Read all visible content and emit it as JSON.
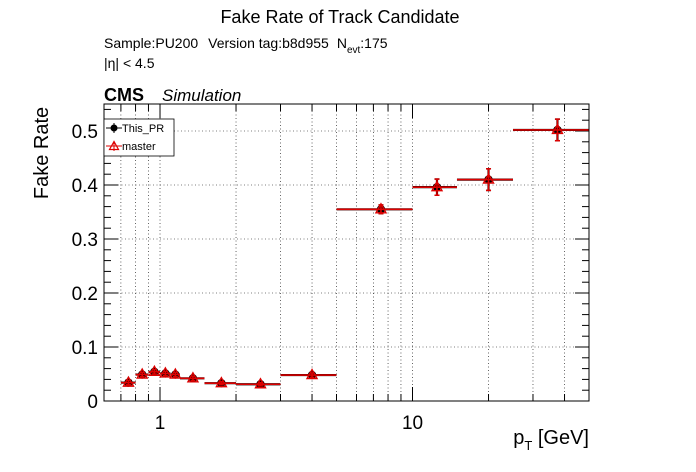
{
  "chart_data": {
    "type": "scatter",
    "title": "Fake Rate of Track Candidate",
    "info_line1": {
      "sample": "Sample:PU200",
      "version": "Version tag:b8d955",
      "nevt_prefix": "N",
      "nevt_sub": "evt",
      "nevt_value": ":175"
    },
    "info_line2": "|η| < 4.5",
    "cms_label": "CMS",
    "cms_sublabel": "Simulation",
    "ylabel": "Fake Rate",
    "xlabel_main": "p",
    "xlabel_sub": "T",
    "xlabel_unit": " [GeV]",
    "xscale": "log",
    "xlim": [
      0.6,
      50
    ],
    "ylim": [
      0,
      0.55
    ],
    "grid": true,
    "legend_placement": "top-left",
    "x_tick_labels": [
      {
        "value": 1,
        "label": "1"
      },
      {
        "value": 10,
        "label": "10"
      }
    ],
    "y_tick_labels": [
      {
        "value": 0,
        "label": "0"
      },
      {
        "value": 0.1,
        "label": "0.1"
      },
      {
        "value": 0.2,
        "label": "0.2"
      },
      {
        "value": 0.3,
        "label": "0.3"
      },
      {
        "value": 0.4,
        "label": "0.4"
      },
      {
        "value": 0.5,
        "label": "0.5"
      }
    ],
    "series": [
      {
        "name": "This_PR",
        "color": "#000000",
        "marker": "filled-circle",
        "points": [
          {
            "x": 0.75,
            "xlo": 0.7,
            "xhi": 0.8,
            "y": 0.034,
            "yerr": 0.004
          },
          {
            "x": 0.85,
            "xlo": 0.8,
            "xhi": 0.9,
            "y": 0.049,
            "yerr": 0.004
          },
          {
            "x": 0.95,
            "xlo": 0.9,
            "xhi": 1.0,
            "y": 0.054,
            "yerr": 0.004
          },
          {
            "x": 1.05,
            "xlo": 1.0,
            "xhi": 1.1,
            "y": 0.051,
            "yerr": 0.004
          },
          {
            "x": 1.15,
            "xlo": 1.1,
            "xhi": 1.2,
            "y": 0.049,
            "yerr": 0.004
          },
          {
            "x": 1.35,
            "xlo": 1.2,
            "xhi": 1.5,
            "y": 0.042,
            "yerr": 0.004
          },
          {
            "x": 1.75,
            "xlo": 1.5,
            "xhi": 2.0,
            "y": 0.033,
            "yerr": 0.003
          },
          {
            "x": 2.5,
            "xlo": 2.0,
            "xhi": 3.0,
            "y": 0.031,
            "yerr": 0.003
          },
          {
            "x": 4.0,
            "xlo": 3.0,
            "xhi": 5.0,
            "y": 0.048,
            "yerr": 0.004
          },
          {
            "x": 7.5,
            "xlo": 5.0,
            "xhi": 10.0,
            "y": 0.355,
            "yerr": 0.008
          },
          {
            "x": 12.5,
            "xlo": 10.0,
            "xhi": 15.0,
            "y": 0.396,
            "yerr": 0.015
          },
          {
            "x": 20.0,
            "xlo": 15.0,
            "xhi": 25.0,
            "y": 0.41,
            "yerr": 0.02
          },
          {
            "x": 37.5,
            "xlo": 25.0,
            "xhi": 50.0,
            "y": 0.502,
            "yerr": 0.02
          }
        ]
      },
      {
        "name": "master",
        "color": "#dd0000",
        "marker": "open-triangle",
        "points": [
          {
            "x": 0.75,
            "xlo": 0.7,
            "xhi": 0.8,
            "y": 0.034,
            "yerr": 0.004
          },
          {
            "x": 0.85,
            "xlo": 0.8,
            "xhi": 0.9,
            "y": 0.049,
            "yerr": 0.004
          },
          {
            "x": 0.95,
            "xlo": 0.9,
            "xhi": 1.0,
            "y": 0.054,
            "yerr": 0.004
          },
          {
            "x": 1.05,
            "xlo": 1.0,
            "xhi": 1.1,
            "y": 0.051,
            "yerr": 0.004
          },
          {
            "x": 1.15,
            "xlo": 1.1,
            "xhi": 1.2,
            "y": 0.049,
            "yerr": 0.004
          },
          {
            "x": 1.35,
            "xlo": 1.2,
            "xhi": 1.5,
            "y": 0.042,
            "yerr": 0.004
          },
          {
            "x": 1.75,
            "xlo": 1.5,
            "xhi": 2.0,
            "y": 0.033,
            "yerr": 0.003
          },
          {
            "x": 2.5,
            "xlo": 2.0,
            "xhi": 3.0,
            "y": 0.031,
            "yerr": 0.003
          },
          {
            "x": 4.0,
            "xlo": 3.0,
            "xhi": 5.0,
            "y": 0.048,
            "yerr": 0.004
          },
          {
            "x": 7.5,
            "xlo": 5.0,
            "xhi": 10.0,
            "y": 0.355,
            "yerr": 0.008
          },
          {
            "x": 12.5,
            "xlo": 10.0,
            "xhi": 15.0,
            "y": 0.396,
            "yerr": 0.015
          },
          {
            "x": 20.0,
            "xlo": 15.0,
            "xhi": 25.0,
            "y": 0.41,
            "yerr": 0.02
          },
          {
            "x": 37.5,
            "xlo": 25.0,
            "xhi": 50.0,
            "y": 0.502,
            "yerr": 0.02
          }
        ]
      }
    ]
  }
}
